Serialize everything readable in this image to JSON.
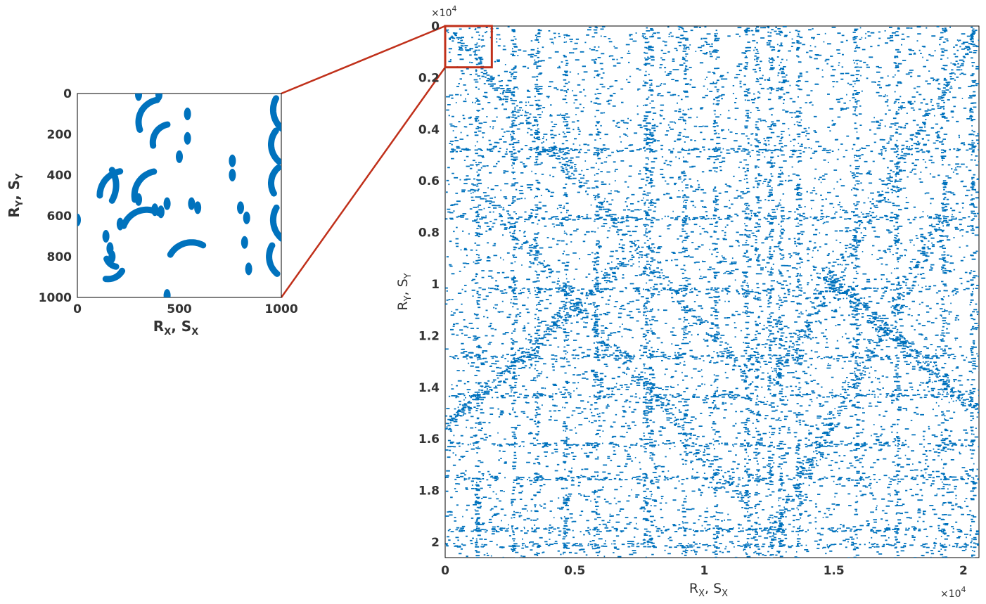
{
  "chart_data": [
    {
      "type": "scatter",
      "title": "",
      "xlabel": "R_X, S_X",
      "ylabel": "R_Y, S_Y",
      "xlim": [
        0,
        1000
      ],
      "ylim": [
        1000,
        0
      ],
      "x_ticks": [
        "0",
        "500",
        "1000"
      ],
      "y_ticks": [
        "0",
        "200",
        "400",
        "600",
        "800",
        "1000"
      ],
      "y_reversed": true,
      "marker_color": "#0072BD",
      "arcs": [
        {
          "cx": 170,
          "cy": 10,
          "r": 90,
          "a0": 200,
          "a1": 300
        },
        {
          "cx": 410,
          "cy": 140,
          "r": 110,
          "a0": 160,
          "a1": 260
        },
        {
          "cx": 460,
          "cy": 240,
          "r": 90,
          "a0": 170,
          "a1": 260
        },
        {
          "cx": 1080,
          "cy": 80,
          "r": 120,
          "a0": 120,
          "a1": 210
        },
        {
          "cx": 1060,
          "cy": 250,
          "r": 110,
          "a0": 130,
          "a1": 220
        },
        {
          "cx": 1050,
          "cy": 440,
          "r": 100,
          "a0": 150,
          "a1": 230
        },
        {
          "cx": 1080,
          "cy": 620,
          "r": 120,
          "a0": 130,
          "a1": 210
        },
        {
          "cx": 1050,
          "cy": 800,
          "r": 110,
          "a0": 130,
          "a1": 210
        },
        {
          "cx": 40,
          "cy": 450,
          "r": 150,
          "a0": 330,
          "a1": 30
        },
        {
          "cx": 230,
          "cy": 500,
          "r": 120,
          "a0": 180,
          "a1": 260
        },
        {
          "cx": 400,
          "cy": 500,
          "r": 120,
          "a0": 170,
          "a1": 260
        },
        {
          "cx": 340,
          "cy": 690,
          "r": 120,
          "a0": 200,
          "a1": 300
        },
        {
          "cx": 560,
          "cy": 850,
          "r": 120,
          "a0": 210,
          "a1": 300
        },
        {
          "cx": 150,
          "cy": 830,
          "r": 80,
          "a0": 30,
          "a1": 100
        },
        {
          "cx": 200,
          "cy": 790,
          "r": 60,
          "a0": 100,
          "a1": 160
        }
      ],
      "blobs": [
        {
          "x": 160,
          "y": 760
        },
        {
          "x": 170,
          "y": 800
        },
        {
          "x": 380,
          "y": 570
        },
        {
          "x": 410,
          "y": 580
        },
        {
          "x": 440,
          "y": 540
        },
        {
          "x": 300,
          "y": 520
        },
        {
          "x": 140,
          "y": 700
        },
        {
          "x": 560,
          "y": 540
        },
        {
          "x": 590,
          "y": 560
        },
        {
          "x": 500,
          "y": 310
        },
        {
          "x": 540,
          "y": 220
        },
        {
          "x": 540,
          "y": 100
        },
        {
          "x": 760,
          "y": 330
        },
        {
          "x": 760,
          "y": 400
        },
        {
          "x": 820,
          "y": 730
        },
        {
          "x": 840,
          "y": 860
        },
        {
          "x": 830,
          "y": 610
        },
        {
          "x": 800,
          "y": 560
        },
        {
          "x": 0,
          "y": 620
        },
        {
          "x": 300,
          "y": 5
        },
        {
          "x": 400,
          "y": 5
        },
        {
          "x": 440,
          "y": 990
        },
        {
          "x": 210,
          "y": 640
        }
      ]
    },
    {
      "type": "scatter",
      "title": "",
      "xlabel": "R_X, S_X",
      "ylabel": "R_Y, S_Y",
      "xlim": [
        0,
        20600
      ],
      "ylim": [
        20600,
        0
      ],
      "x_ticks": [
        "0",
        "0.5",
        "1",
        "1.5",
        "2"
      ],
      "y_ticks": [
        "0",
        "0.2",
        "0.4",
        "0.6",
        "0.8",
        "1",
        "1.2",
        "1.4",
        "1.6",
        "1.8",
        "2"
      ],
      "x_exponent": "×10",
      "y_exponent": "×10",
      "exponent_power": "4",
      "y_reversed": true,
      "marker_color": "#0072BD",
      "zoom_box": {
        "x0": 0,
        "x1": 1800,
        "y0": 0,
        "y1": 1600,
        "color": "#C0301A"
      },
      "vertical_streaks_x": [
        1200,
        2600,
        3500,
        4600,
        5800,
        7700,
        7900,
        9200,
        10400,
        11600,
        12000,
        12500,
        12900,
        13600,
        15800,
        17400,
        19200,
        20300
      ],
      "horizontal_streaks_y": [
        4800,
        7400,
        10200,
        12800,
        14300,
        16200,
        17500,
        19500,
        20100
      ],
      "diagonals": [
        {
          "x0": 0,
          "y0": 0,
          "x1": 11800,
          "y1": 13800
        },
        {
          "x0": 20600,
          "y0": 0,
          "x1": 12600,
          "y1": 13800
        },
        {
          "x0": 1000,
          "y0": 6000,
          "x1": 11600,
          "y1": 18500
        },
        {
          "x0": 19400,
          "y0": 7000,
          "x1": 12600,
          "y1": 19500
        },
        {
          "x0": 0,
          "y0": 15500,
          "x1": 7000,
          "y1": 9000
        },
        {
          "x0": 20600,
          "y0": 15000,
          "x1": 14500,
          "y1": 9500
        }
      ],
      "density_note_seed": 7
    }
  ]
}
